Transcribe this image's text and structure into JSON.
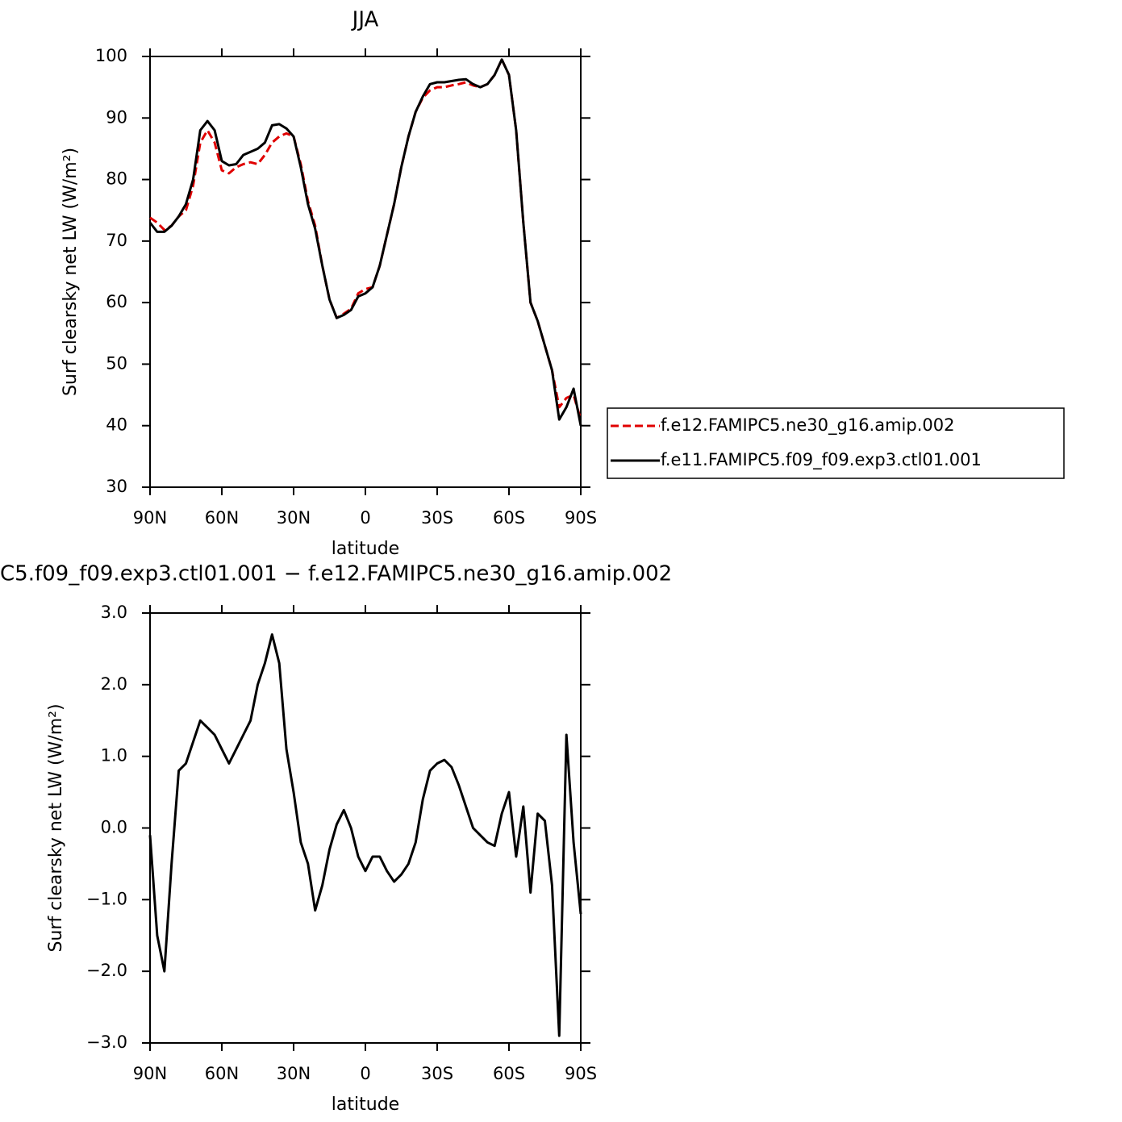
{
  "chart_data": [
    {
      "type": "line",
      "title": "JJA",
      "xlabel": "latitude",
      "ylabel": "Surf clearsky net LW (W/m²)",
      "x": [
        90,
        87,
        84,
        81,
        78,
        75,
        72,
        69,
        66,
        63,
        60,
        57,
        54,
        51,
        48,
        45,
        42,
        39,
        36,
        33,
        30,
        27,
        24,
        21,
        18,
        15,
        12,
        9,
        6,
        3,
        0,
        -3,
        -6,
        -9,
        -12,
        -15,
        -18,
        -21,
        -24,
        -27,
        -30,
        -33,
        -36,
        -39,
        -42,
        -45,
        -48,
        -51,
        -54,
        -57,
        -60,
        -63,
        -66,
        -69,
        -72,
        -75,
        -78,
        -81,
        -84,
        -87,
        -90
      ],
      "series": [
        {
          "name": "f.e12.FAMIPC5.ne30_g16.amip.002",
          "color": "#e00000",
          "dash": true,
          "values": [
            73.8,
            73,
            71.8,
            72.5,
            74,
            75,
            79,
            86,
            88,
            86,
            81.5,
            81,
            82,
            82.5,
            82.8,
            82.5,
            84,
            86,
            87,
            87.5,
            87,
            82.5,
            76.5,
            72.5,
            66,
            60.5,
            57.5,
            58.2,
            59,
            61.5,
            62.2,
            62.5,
            66,
            71,
            76,
            82,
            87,
            91,
            93.3,
            94.5,
            95,
            95,
            95.3,
            95.5,
            95.8,
            95.3,
            95,
            95.5,
            97,
            99.5,
            97,
            88,
            73,
            60,
            57,
            53,
            49,
            43,
            44.5,
            45,
            41
          ]
        },
        {
          "name": "f.e11.FAMIPC5.f09_f09.exp3.ctl01.001",
          "color": "#000000",
          "dash": false,
          "values": [
            73,
            71.5,
            71.5,
            72.5,
            74,
            76,
            80,
            88,
            89.5,
            88,
            83,
            82.3,
            82.5,
            84,
            84.5,
            85,
            86,
            88.8,
            89,
            88.3,
            87,
            82,
            76,
            72,
            66,
            60.5,
            57.5,
            58,
            58.8,
            61,
            61.5,
            62.5,
            66,
            71,
            76,
            82,
            87,
            91,
            93.5,
            95.5,
            95.8,
            95.8,
            96,
            96.2,
            96.3,
            95.5,
            95,
            95.5,
            97,
            99.5,
            97,
            88,
            73,
            60,
            57,
            53,
            49,
            41,
            43,
            46,
            40
          ]
        }
      ],
      "xlim": [
        90,
        -90
      ],
      "xticks": [
        {
          "value": 90,
          "label": "90N"
        },
        {
          "value": 60,
          "label": "60N"
        },
        {
          "value": 30,
          "label": "30N"
        },
        0,
        {
          "value": -30,
          "label": "30S"
        },
        {
          "value": -60,
          "label": "60S"
        },
        {
          "value": -90,
          "label": "90S"
        }
      ],
      "ylim": [
        30,
        100
      ],
      "yticks": [
        30,
        40,
        50,
        60,
        70,
        80,
        90,
        100
      ],
      "legend": "right"
    },
    {
      "type": "line",
      "title": "C5.f09_f09.exp3.ctl01.001 − f.e12.FAMIPC5.ne30_g16.amip.002",
      "xlabel": "latitude",
      "ylabel": "Surf clearsky net LW (W/m²)",
      "x": [
        90,
        87,
        84,
        81,
        78,
        75,
        72,
        69,
        66,
        63,
        60,
        57,
        54,
        51,
        48,
        45,
        42,
        39,
        36,
        33,
        30,
        27,
        24,
        21,
        18,
        15,
        12,
        9,
        6,
        3,
        0,
        -3,
        -6,
        -9,
        -12,
        -15,
        -18,
        -21,
        -24,
        -27,
        -30,
        -33,
        -36,
        -39,
        -42,
        -45,
        -48,
        -51,
        -54,
        -57,
        -60,
        -63,
        -66,
        -69,
        -72,
        -75,
        -78,
        -81,
        -84,
        -87,
        -90
      ],
      "series": [
        {
          "color": "#000000",
          "dash": false,
          "values": [
            -0.1,
            -1.5,
            -2.0,
            -0.5,
            0.8,
            0.9,
            1.2,
            1.5,
            1.4,
            1.3,
            1.1,
            0.9,
            1.1,
            1.3,
            1.5,
            2.0,
            2.3,
            2.7,
            2.3,
            1.1,
            0.5,
            -0.2,
            -0.5,
            -1.15,
            -0.8,
            -0.3,
            0.05,
            0.25,
            0.0,
            -0.4,
            -0.6,
            -0.4,
            -0.4,
            -0.6,
            -0.75,
            -0.65,
            -0.5,
            -0.2,
            0.4,
            0.8,
            0.9,
            0.95,
            0.85,
            0.6,
            0.3,
            0.0,
            -0.1,
            -0.2,
            -0.25,
            0.2,
            0.5,
            -0.4,
            0.3,
            -0.9,
            0.2,
            0.1,
            -0.8,
            -2.9,
            1.3,
            -0.2,
            -1.2
          ]
        }
      ],
      "xlim": [
        90,
        -90
      ],
      "xticks": [
        {
          "value": 90,
          "label": "90N"
        },
        {
          "value": 60,
          "label": "60N"
        },
        {
          "value": 30,
          "label": "30N"
        },
        0,
        {
          "value": -30,
          "label": "30S"
        },
        {
          "value": -60,
          "label": "60S"
        },
        {
          "value": -90,
          "label": "90S"
        }
      ],
      "ylim": [
        -3,
        3
      ],
      "yticks": [
        {
          "value": -3,
          "label": "−3.0"
        },
        {
          "value": -2,
          "label": "−2.0"
        },
        {
          "value": -1,
          "label": "−1.0"
        },
        {
          "value": 0,
          "label": "0.0"
        },
        {
          "value": 1,
          "label": "1.0"
        },
        {
          "value": 2,
          "label": "2.0"
        },
        {
          "value": 3,
          "label": "3.0"
        }
      ]
    }
  ]
}
